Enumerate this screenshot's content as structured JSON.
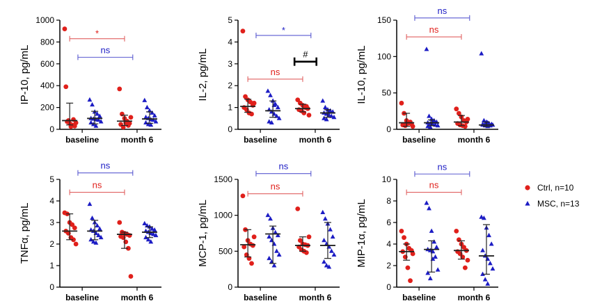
{
  "colors": {
    "ctrl": "#e0201b",
    "msc": "#1c1cc4",
    "bracket_ctrl": "#e06060",
    "bracket_msc": "#5a5ad0",
    "hash": "#000000"
  },
  "legend": [
    {
      "label": "Ctrl, n=10",
      "marker": "circle",
      "color": "#e0201b"
    },
    {
      "label": "MSC, n=13",
      "marker": "triangle",
      "color": "#1c1cc4"
    }
  ],
  "chart_data": [
    {
      "type": "scatter",
      "ylabel": "IP-10, pg/mL",
      "categories": [
        "baseline",
        "month 6"
      ],
      "ylim": [
        0,
        1000
      ],
      "yticks": [
        0,
        200,
        400,
        600,
        800,
        1000
      ],
      "series": [
        {
          "name": "Ctrl, n=10",
          "marker": "circle",
          "points": [
            [
              920,
              70,
              55,
              40,
              30,
              390,
              80,
              25,
              90,
              60
            ],
            [
              370,
              140,
              100,
              75,
              55,
              45,
              20,
              60,
              35,
              110
            ]
          ],
          "median": [
            80,
            75
          ],
          "error": [
            [
              40,
              240
            ],
            [
              35,
              130
            ]
          ]
        },
        {
          "name": "MSC, n=13",
          "marker": "triangle",
          "points": [
            [
              270,
              225,
              160,
              140,
              120,
              100,
              95,
              90,
              85,
              70,
              60,
              45,
              30
            ],
            [
              265,
              200,
              170,
              150,
              125,
              110,
              100,
              90,
              85,
              70,
              60,
              45,
              40
            ]
          ],
          "median": [
            100,
            95
          ],
          "error": [
            [
              50,
              165
            ],
            [
              55,
              160
            ]
          ]
        }
      ],
      "annotations": [
        {
          "text": "*",
          "color": "ctrl",
          "x1": 0,
          "x2": 1,
          "y": 830
        },
        {
          "text": "ns",
          "color": "msc",
          "x1": 0.15,
          "x2": 1.15,
          "y": 660
        }
      ]
    },
    {
      "type": "scatter",
      "ylabel": "IL-2, pg/mL",
      "categories": [
        "baseline",
        "month 6"
      ],
      "ylim": [
        0,
        5
      ],
      "yticks": [
        0,
        1,
        2,
        3,
        4,
        5
      ],
      "series": [
        {
          "name": "Ctrl, n=10",
          "marker": "circle",
          "points": [
            [
              4.5,
              1.5,
              1.35,
              1.25,
              1.1,
              1.0,
              0.9,
              0.75,
              0.7,
              1.2
            ],
            [
              1.35,
              1.2,
              1.1,
              1.0,
              0.95,
              0.9,
              0.85,
              0.75,
              1.05,
              0.65
            ]
          ],
          "median": [
            1.05,
            0.95
          ],
          "error": [
            [
              0.78,
              1.38
            ],
            [
              0.8,
              1.15
            ]
          ]
        },
        {
          "name": "MSC, n=13",
          "marker": "triangle",
          "points": [
            [
              1.75,
              1.55,
              1.3,
              1.15,
              1.0,
              0.9,
              0.8,
              0.7,
              0.6,
              0.5,
              0.35,
              0.3,
              1.1
            ],
            [
              1.3,
              1.0,
              0.9,
              0.85,
              0.8,
              0.75,
              0.7,
              0.65,
              0.6,
              0.55,
              0.5,
              0.45,
              0.8
            ]
          ],
          "median": [
            0.85,
            0.75
          ],
          "error": [
            [
              0.55,
              1.3
            ],
            [
              0.55,
              0.9
            ]
          ]
        }
      ],
      "annotations": [
        {
          "text": "*",
          "color": "msc",
          "x1": 0.15,
          "x2": 1.15,
          "y": 4.3
        },
        {
          "text": "ns",
          "color": "ctrl",
          "x1": 0,
          "x2": 1,
          "y": 2.3
        },
        {
          "text": "#",
          "color": "hash",
          "x1": 0.85,
          "x2": 1.25,
          "y": 3.1,
          "bold": true
        }
      ]
    },
    {
      "type": "scatter",
      "ylabel": "IL-10, pg/mL",
      "categories": [
        "baseline",
        "month 6"
      ],
      "ylim": [
        0,
        150
      ],
      "yticks": [
        0,
        50,
        100,
        150
      ],
      "series": [
        {
          "name": "Ctrl, n=10",
          "marker": "circle",
          "points": [
            [
              36,
              22,
              12,
              9,
              7,
              6,
              5,
              8,
              10,
              4
            ],
            [
              28,
              22,
              17,
              12,
              10,
              8,
              6,
              5,
              4,
              14
            ]
          ],
          "median": [
            9,
            10
          ],
          "error": [
            [
              4,
              22
            ],
            [
              5,
              19
            ]
          ]
        },
        {
          "name": "MSC, n=13",
          "marker": "triangle",
          "points": [
            [
              110,
              18,
              14,
              12,
              10,
              9,
              8,
              7,
              6,
              5,
              4,
              3,
              11
            ],
            [
              104,
              12,
              10,
              8,
              7,
              6,
              5,
              4,
              5,
              6,
              7,
              8,
              9
            ]
          ],
          "median": [
            9,
            6
          ],
          "error": [
            [
              5,
              13
            ],
            [
              4,
              10
            ]
          ]
        }
      ],
      "annotations": [
        {
          "text": "ns",
          "color": "msc",
          "x1": 0.15,
          "x2": 1.15,
          "y": 153
        },
        {
          "text": "ns",
          "color": "ctrl",
          "x1": 0,
          "x2": 1,
          "y": 127
        }
      ]
    },
    {
      "type": "scatter",
      "ylabel": "TNFα, pg/mL",
      "categories": [
        "baseline",
        "month 6"
      ],
      "ylim": [
        0,
        5
      ],
      "yticks": [
        0,
        1,
        2,
        3,
        4,
        5
      ],
      "series": [
        {
          "name": "Ctrl, n=10",
          "marker": "circle",
          "points": [
            [
              3.45,
              3.4,
              3.0,
              2.9,
              2.75,
              2.6,
              2.5,
              2.3,
              2.2,
              2.0
            ],
            [
              3.0,
              2.55,
              2.5,
              2.45,
              2.4,
              2.35,
              2.3,
              2.1,
              1.8,
              0.5
            ]
          ],
          "median": [
            2.6,
            2.45
          ],
          "error": [
            [
              2.2,
              3.4
            ],
            [
              1.8,
              2.55
            ]
          ]
        },
        {
          "name": "MSC, n=13",
          "marker": "triangle",
          "points": [
            [
              3.85,
              3.2,
              3.0,
              2.85,
              2.7,
              2.65,
              2.6,
              2.5,
              2.4,
              2.3,
              2.2,
              2.1,
              2.05
            ],
            [
              2.95,
              2.85,
              2.8,
              2.7,
              2.65,
              2.6,
              2.55,
              2.5,
              2.45,
              2.4,
              2.3,
              2.2,
              2.1
            ]
          ],
          "median": [
            2.6,
            2.55
          ],
          "error": [
            [
              2.2,
              3.1
            ],
            [
              2.3,
              2.8
            ]
          ]
        }
      ],
      "annotations": [
        {
          "text": "ns",
          "color": "msc",
          "x1": 0.15,
          "x2": 1.15,
          "y": 5.3
        },
        {
          "text": "ns",
          "color": "ctrl",
          "x1": 0,
          "x2": 1,
          "y": 4.4
        }
      ]
    },
    {
      "type": "scatter",
      "ylabel": "MCP-1, pg/mL",
      "categories": [
        "baseline",
        "month 6"
      ],
      "ylim": [
        0,
        1500
      ],
      "yticks": [
        0,
        500,
        1000,
        1500
      ],
      "series": [
        {
          "name": "Ctrl, n=10",
          "marker": "circle",
          "points": [
            [
              1270,
              800,
              650,
              600,
              580,
              560,
              450,
              400,
              330,
              700
            ],
            [
              1090,
              650,
              600,
              590,
              580,
              560,
              520,
              500,
              480,
              700
            ]
          ],
          "median": [
            590,
            580
          ],
          "error": [
            [
              420,
              800
            ],
            [
              500,
              700
            ]
          ]
        },
        {
          "name": "MSC, n=13",
          "marker": "triangle",
          "points": [
            [
              1000,
              950,
              820,
              760,
              720,
              700,
              650,
              600,
              500,
              450,
              400,
              350,
              300
            ],
            [
              1040,
              950,
              880,
              800,
              700,
              650,
              600,
              560,
              500,
              450,
              350,
              300,
              280
            ]
          ],
          "median": [
            740,
            580
          ],
          "error": [
            [
              330,
              850
            ],
            [
              400,
              900
            ]
          ]
        }
      ],
      "annotations": [
        {
          "text": "ns",
          "color": "msc",
          "x1": 0.15,
          "x2": 1.15,
          "y": 1580
        },
        {
          "text": "ns",
          "color": "ctrl",
          "x1": 0,
          "x2": 1,
          "y": 1300
        }
      ]
    },
    {
      "type": "scatter",
      "ylabel": "MIP-1α, pg/mL",
      "categories": [
        "baseline",
        "month 6"
      ],
      "ylim": [
        0,
        10
      ],
      "yticks": [
        0,
        2,
        4,
        6,
        8,
        10
      ],
      "series": [
        {
          "name": "Ctrl, n=10",
          "marker": "circle",
          "points": [
            [
              5.2,
              4.6,
              4.0,
              3.6,
              3.4,
              3.3,
              2.8,
              1.8,
              0.6,
              3.1
            ],
            [
              5.2,
              4.4,
              4.0,
              3.7,
              3.4,
              3.3,
              3.1,
              2.8,
              1.8,
              2.5
            ]
          ],
          "median": [
            3.3,
            3.4
          ],
          "error": [
            [
              2.5,
              4.0
            ],
            [
              2.6,
              4.3
            ]
          ]
        },
        {
          "name": "MSC, n=13",
          "marker": "triangle",
          "points": [
            [
              7.8,
              7.3,
              5.2,
              4.2,
              3.7,
              3.5,
              3.4,
              3.3,
              2.8,
              1.6,
              1.3,
              0.8,
              2.6
            ],
            [
              6.5,
              6.4,
              5.5,
              4.8,
              4.0,
              3.4,
              2.9,
              2.6,
              2.2,
              1.7,
              1.2,
              0.7,
              0.3
            ]
          ],
          "median": [
            3.5,
            2.9
          ],
          "error": [
            [
              1.4,
              4.3
            ],
            [
              1.2,
              5.8
            ]
          ]
        }
      ],
      "annotations": [
        {
          "text": "ns",
          "color": "msc",
          "x1": 0.15,
          "x2": 1.15,
          "y": 10.5
        },
        {
          "text": "ns",
          "color": "ctrl",
          "x1": 0,
          "x2": 1,
          "y": 8.8
        }
      ]
    }
  ]
}
